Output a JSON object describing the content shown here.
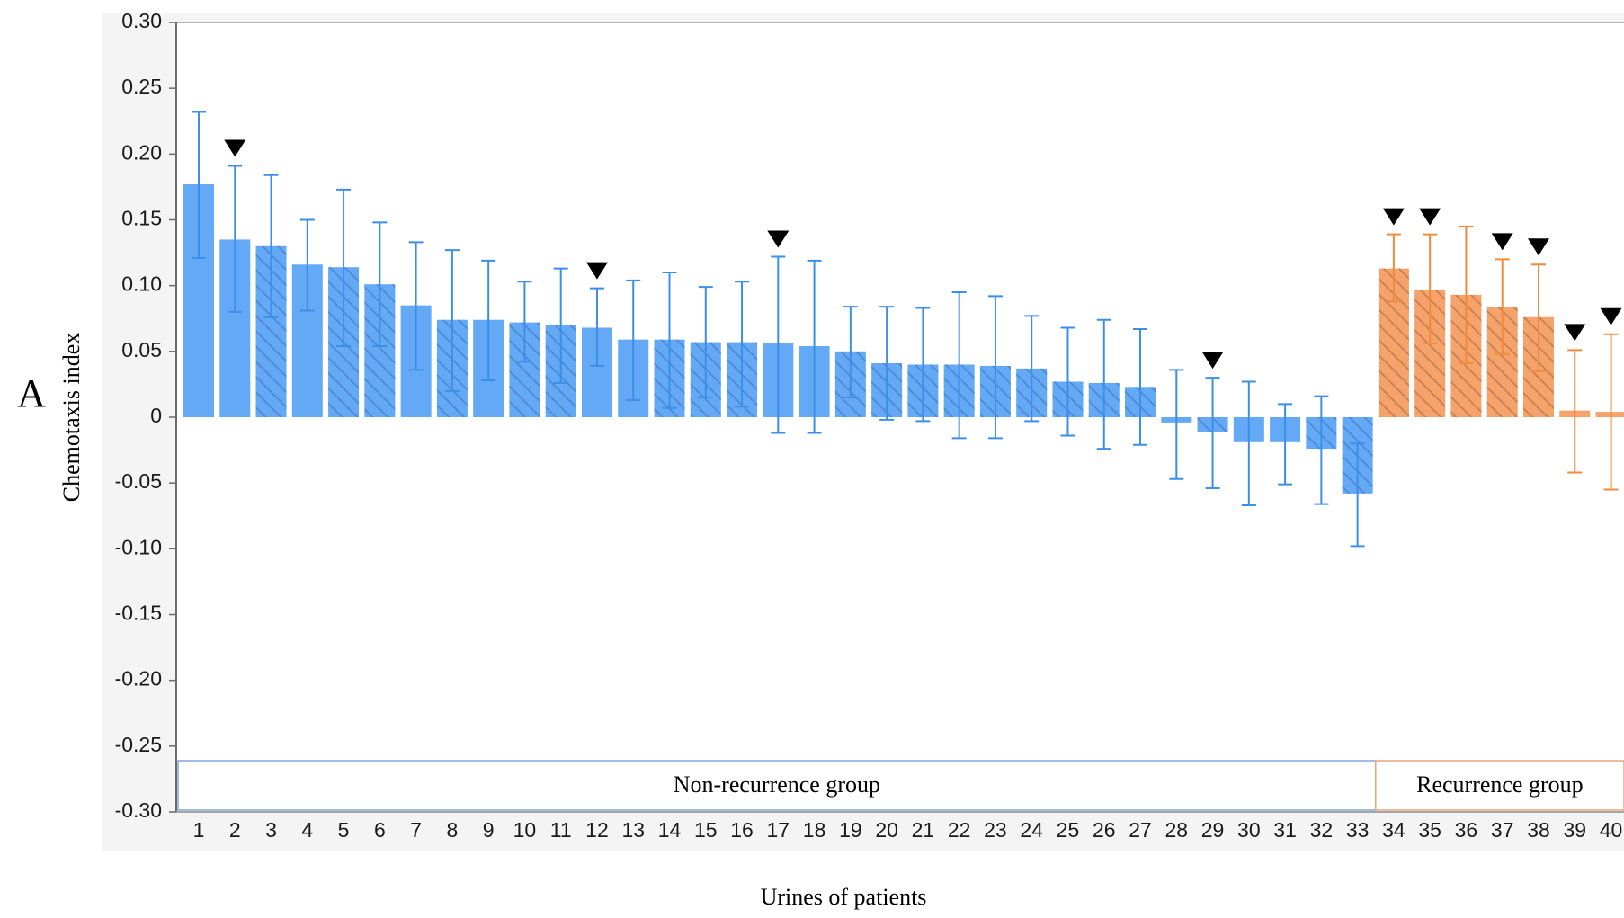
{
  "panel_label": "A",
  "chart_data": {
    "type": "bar",
    "xlabel": "Urines of patients",
    "ylabel": "Chemotaxis index",
    "ylim": [
      -0.3,
      0.3
    ],
    "y_ticks": [
      "0.30",
      "0.25",
      "0.20",
      "0.15",
      "0.10",
      "0.05",
      "0",
      "-0.05",
      "-0.10",
      "-0.15",
      "-0.20",
      "-0.25",
      "-0.30"
    ],
    "y_tick_values": [
      0.3,
      0.25,
      0.2,
      0.15,
      0.1,
      0.05,
      0,
      -0.05,
      -0.1,
      -0.15,
      -0.2,
      -0.25,
      -0.3
    ],
    "categories": [
      "1",
      "2",
      "3",
      "4",
      "5",
      "6",
      "7",
      "8",
      "9",
      "10",
      "11",
      "12",
      "13",
      "14",
      "15",
      "16",
      "17",
      "18",
      "19",
      "20",
      "21",
      "22",
      "23",
      "24",
      "25",
      "26",
      "27",
      "28",
      "29",
      "30",
      "31",
      "32",
      "33",
      "34",
      "35",
      "36",
      "37",
      "38",
      "39",
      "40"
    ],
    "values": [
      0.177,
      0.135,
      0.13,
      0.116,
      0.114,
      0.101,
      0.085,
      0.074,
      0.074,
      0.072,
      0.07,
      0.068,
      0.059,
      0.059,
      0.057,
      0.057,
      0.056,
      0.054,
      0.05,
      0.041,
      0.04,
      0.04,
      0.039,
      0.037,
      0.027,
      0.026,
      0.023,
      -0.004,
      -0.011,
      -0.019,
      -0.019,
      -0.024,
      -0.058,
      0.113,
      0.097,
      0.093,
      0.084,
      0.076,
      0.005,
      0.004
    ],
    "error_low": [
      0.121,
      0.08,
      0.076,
      0.081,
      0.054,
      0.054,
      0.036,
      0.02,
      0.028,
      0.042,
      0.026,
      0.039,
      0.013,
      0.007,
      0.015,
      0.008,
      -0.012,
      -0.012,
      0.015,
      -0.002,
      -0.003,
      -0.016,
      -0.016,
      -0.003,
      -0.014,
      -0.024,
      -0.021,
      -0.047,
      -0.054,
      -0.067,
      -0.051,
      -0.066,
      -0.098,
      0.088,
      0.056,
      0.041,
      0.048,
      0.035,
      -0.042,
      -0.055
    ],
    "error_high": [
      0.232,
      0.191,
      0.184,
      0.15,
      0.173,
      0.148,
      0.133,
      0.127,
      0.119,
      0.103,
      0.113,
      0.098,
      0.104,
      0.11,
      0.099,
      0.103,
      0.122,
      0.119,
      0.084,
      0.084,
      0.083,
      0.095,
      0.092,
      0.077,
      0.068,
      0.074,
      0.067,
      0.036,
      0.03,
      0.027,
      0.01,
      0.016,
      -0.02,
      0.139,
      0.139,
      0.145,
      0.12,
      0.116,
      0.051,
      0.063
    ],
    "hatched": [
      false,
      false,
      true,
      false,
      true,
      true,
      false,
      true,
      false,
      true,
      true,
      false,
      false,
      true,
      true,
      true,
      false,
      false,
      true,
      true,
      true,
      true,
      true,
      true,
      true,
      true,
      true,
      false,
      true,
      false,
      false,
      true,
      true,
      true,
      true,
      true,
      true,
      true,
      false,
      false
    ],
    "marked": [
      2,
      12,
      17,
      29,
      34,
      35,
      37,
      38,
      39,
      40
    ],
    "groups": [
      {
        "name": "Non-recurrence group",
        "start": 1,
        "end": 33,
        "color": "#3d8ee8",
        "bar_color": "#64a9f5"
      },
      {
        "name": "Recurrence group",
        "start": 34,
        "end": 40,
        "color": "#f08a3c",
        "bar_color": "#f5a26b"
      }
    ],
    "grid": false,
    "legend": "none"
  }
}
